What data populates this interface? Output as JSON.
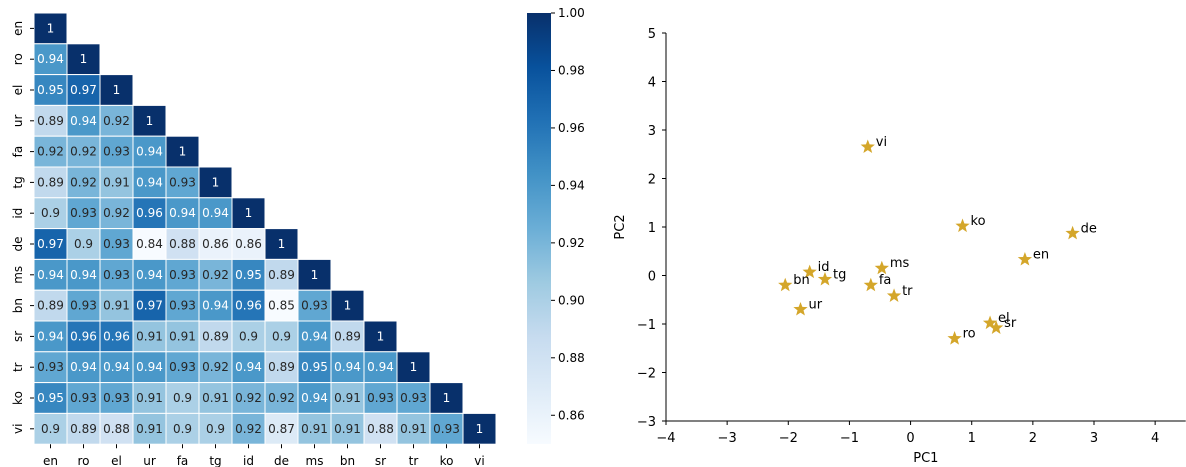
{
  "chart_data": [
    {
      "type": "heatmap",
      "title": "",
      "xlabel": "",
      "ylabel": "",
      "labels": [
        "en",
        "ro",
        "el",
        "ur",
        "fa",
        "tg",
        "id",
        "de",
        "ms",
        "bn",
        "sr",
        "tr",
        "ko",
        "vi"
      ],
      "triangle": "lower",
      "colormap": "Blues",
      "vmin": 0.85,
      "vmax": 1.0,
      "colorbar": {
        "ticks": [
          "0.86",
          "0.88",
          "0.90",
          "0.92",
          "0.94",
          "0.96",
          "0.98",
          "1.00"
        ]
      },
      "annotations": [
        [
          "1"
        ],
        [
          "0.94",
          "1"
        ],
        [
          "0.95",
          "0.97",
          "1"
        ],
        [
          "0.89",
          "0.94",
          "0.92",
          "1"
        ],
        [
          "0.92",
          "0.92",
          "0.93",
          "0.94",
          "1"
        ],
        [
          "0.89",
          "0.92",
          "0.91",
          "0.94",
          "0.93",
          "1"
        ],
        [
          "0.9",
          "0.93",
          "0.92",
          "0.96",
          "0.94",
          "0.94",
          "1"
        ],
        [
          "0.97",
          "0.9",
          "0.93",
          "0.84",
          "0.88",
          "0.86",
          "0.86",
          "1"
        ],
        [
          "0.94",
          "0.94",
          "0.93",
          "0.94",
          "0.93",
          "0.92",
          "0.95",
          "0.89",
          "1"
        ],
        [
          "0.89",
          "0.93",
          "0.91",
          "0.97",
          "0.93",
          "0.94",
          "0.96",
          "0.85",
          "0.93",
          "1"
        ],
        [
          "0.94",
          "0.96",
          "0.96",
          "0.91",
          "0.91",
          "0.89",
          "0.9",
          "0.9",
          "0.94",
          "0.89",
          "1"
        ],
        [
          "0.93",
          "0.94",
          "0.94",
          "0.94",
          "0.93",
          "0.92",
          "0.94",
          "0.89",
          "0.95",
          "0.94",
          "0.94",
          "1"
        ],
        [
          "0.95",
          "0.93",
          "0.93",
          "0.91",
          "0.9",
          "0.91",
          "0.92",
          "0.92",
          "0.94",
          "0.91",
          "0.93",
          "0.93",
          "1"
        ],
        [
          "0.9",
          "0.89",
          "0.88",
          "0.91",
          "0.9",
          "0.9",
          "0.92",
          "0.87",
          "0.91",
          "0.91",
          "0.88",
          "0.91",
          "0.93",
          "1"
        ]
      ]
    },
    {
      "type": "scatter",
      "title": "",
      "xlabel": "PC1",
      "ylabel": "PC2",
      "xlim": [
        -4,
        4.5
      ],
      "ylim": [
        -3,
        5
      ],
      "xticks": [
        -4,
        -3,
        -2,
        -1,
        0,
        1,
        2,
        3,
        4
      ],
      "yticks": [
        -3,
        -2,
        -1,
        0,
        1,
        2,
        3,
        4,
        5
      ],
      "marker": "star",
      "color": "#d4a62a",
      "points": [
        {
          "label": "vi",
          "x": -0.7,
          "y": 2.65
        },
        {
          "label": "ko",
          "x": 0.85,
          "y": 1.02
        },
        {
          "label": "de",
          "x": 2.65,
          "y": 0.87
        },
        {
          "label": "en",
          "x": 1.87,
          "y": 0.33
        },
        {
          "label": "ms",
          "x": -0.47,
          "y": 0.15
        },
        {
          "label": "id",
          "x": -1.65,
          "y": 0.07
        },
        {
          "label": "tg",
          "x": -1.4,
          "y": -0.08
        },
        {
          "label": "bn",
          "x": -2.05,
          "y": -0.2
        },
        {
          "label": "fa",
          "x": -0.65,
          "y": -0.2
        },
        {
          "label": "tr",
          "x": -0.27,
          "y": -0.42
        },
        {
          "label": "ur",
          "x": -1.8,
          "y": -0.7
        },
        {
          "label": "el",
          "x": 1.3,
          "y": -0.98
        },
        {
          "label": "sr",
          "x": 1.4,
          "y": -1.08
        },
        {
          "label": "ro",
          "x": 0.72,
          "y": -1.3
        }
      ]
    }
  ]
}
